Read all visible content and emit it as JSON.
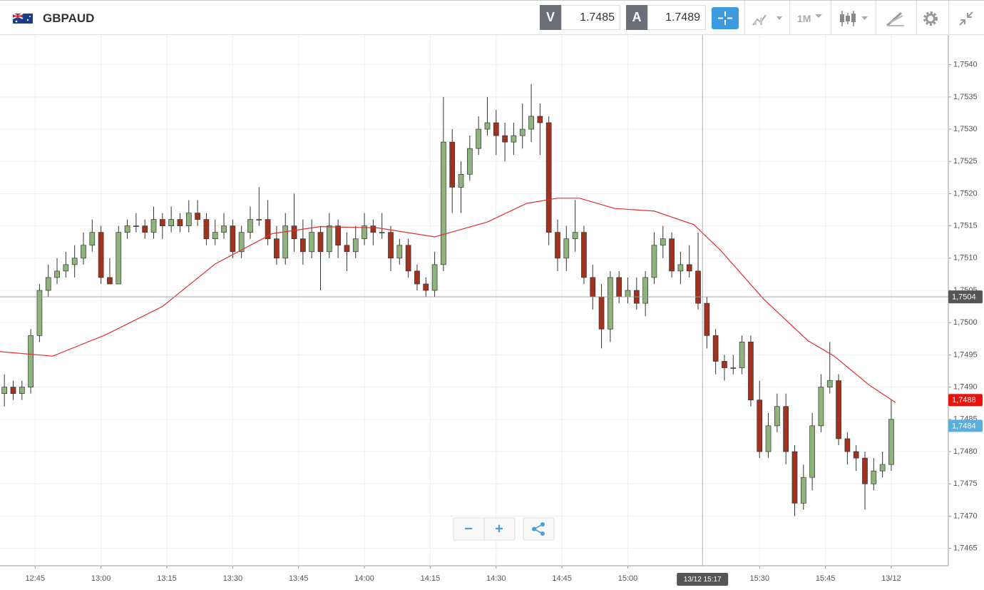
{
  "header": {
    "symbol": "GBPAUD",
    "bid_label": "V",
    "bid": 1.7485,
    "ask_label": "A",
    "ask": 1.7489,
    "timeframe": "1M"
  },
  "zoom": {
    "out": "−",
    "in": "+"
  },
  "chart_data": {
    "type": "candlestick",
    "x": [
      "12:38",
      "12:40",
      "12:42",
      "12:44",
      "12:46",
      "12:48",
      "12:50",
      "12:52",
      "12:54",
      "12:56",
      "12:58",
      "13:00",
      "13:02",
      "13:04",
      "13:06",
      "13:08",
      "13:10",
      "13:12",
      "13:14",
      "13:16",
      "13:18",
      "13:20",
      "13:22",
      "13:24",
      "13:26",
      "13:28",
      "13:30",
      "13:32",
      "13:34",
      "13:36",
      "13:38",
      "13:40",
      "13:42",
      "13:44",
      "13:46",
      "13:48",
      "13:50",
      "13:52",
      "13:54",
      "13:56",
      "13:58",
      "14:00",
      "14:02",
      "14:04",
      "14:06",
      "14:08",
      "14:10",
      "14:12",
      "14:14",
      "14:16",
      "14:18",
      "14:20",
      "14:22",
      "14:24",
      "14:26",
      "14:28",
      "14:30",
      "14:32",
      "14:34",
      "14:36",
      "14:38",
      "14:40",
      "14:42",
      "14:44",
      "14:46",
      "14:48",
      "14:50",
      "14:52",
      "14:54",
      "14:56",
      "14:58",
      "15:00",
      "15:02",
      "15:04",
      "15:06",
      "15:08",
      "15:10",
      "15:12",
      "15:14",
      "15:16",
      "15:18",
      "15:20",
      "15:22",
      "15:24",
      "15:26",
      "15:28",
      "15:30",
      "15:32",
      "15:34",
      "15:36",
      "15:38",
      "15:40",
      "15:42",
      "15:44",
      "15:46",
      "15:48",
      "15:50",
      "15:52",
      "15:54",
      "15:56",
      "15:58",
      "16:00"
    ],
    "ohlc": [
      [
        1.7489,
        1.7492,
        1.7487,
        1.749
      ],
      [
        1.749,
        1.7491,
        1.7488,
        1.7489
      ],
      [
        1.7489,
        1.7491,
        1.7488,
        1.749
      ],
      [
        1.749,
        1.7499,
        1.7489,
        1.7498
      ],
      [
        1.7498,
        1.7506,
        1.7497,
        1.7505
      ],
      [
        1.7505,
        1.7509,
        1.7504,
        1.7507
      ],
      [
        1.7507,
        1.751,
        1.7506,
        1.7508
      ],
      [
        1.7508,
        1.7511,
        1.7507,
        1.7509
      ],
      [
        1.7509,
        1.7512,
        1.7507,
        1.751
      ],
      [
        1.751,
        1.7514,
        1.7509,
        1.7512
      ],
      [
        1.7512,
        1.7516,
        1.7511,
        1.7514
      ],
      [
        1.7514,
        1.7515,
        1.7506,
        1.7507
      ],
      [
        1.7507,
        1.751,
        1.7506,
        1.7506
      ],
      [
        1.7506,
        1.7515,
        1.7506,
        1.7514
      ],
      [
        1.7514,
        1.7516,
        1.7513,
        1.7515
      ],
      [
        1.7515,
        1.7517,
        1.7514,
        1.7515
      ],
      [
        1.7515,
        1.7516,
        1.7513,
        1.7514
      ],
      [
        1.7514,
        1.7518,
        1.7513,
        1.7516
      ],
      [
        1.7516,
        1.7517,
        1.7513,
        1.7515
      ],
      [
        1.7515,
        1.7518,
        1.7514,
        1.7516
      ],
      [
        1.7516,
        1.7517,
        1.7514,
        1.7515
      ],
      [
        1.7515,
        1.7519,
        1.7514,
        1.7517
      ],
      [
        1.7517,
        1.7519,
        1.7515,
        1.7516
      ],
      [
        1.7516,
        1.7517,
        1.7512,
        1.7513
      ],
      [
        1.7513,
        1.7516,
        1.7512,
        1.7514
      ],
      [
        1.7514,
        1.7517,
        1.7513,
        1.7515
      ],
      [
        1.7515,
        1.7516,
        1.751,
        1.7511
      ],
      [
        1.7511,
        1.7515,
        1.751,
        1.7514
      ],
      [
        1.7514,
        1.7518,
        1.7513,
        1.7516
      ],
      [
        1.7516,
        1.7521,
        1.7515,
        1.7516
      ],
      [
        1.7516,
        1.7519,
        1.7512,
        1.7513
      ],
      [
        1.7513,
        1.7515,
        1.7509,
        1.751
      ],
      [
        1.751,
        1.7517,
        1.7509,
        1.7515
      ],
      [
        1.7515,
        1.752,
        1.7511,
        1.7513
      ],
      [
        1.7513,
        1.7516,
        1.7509,
        1.7511
      ],
      [
        1.7511,
        1.7516,
        1.751,
        1.7514
      ],
      [
        1.7514,
        1.7515,
        1.7505,
        1.7511
      ],
      [
        1.7511,
        1.7517,
        1.751,
        1.7515
      ],
      [
        1.7515,
        1.7516,
        1.751,
        1.7512
      ],
      [
        1.7512,
        1.7514,
        1.7508,
        1.7511
      ],
      [
        1.7511,
        1.7515,
        1.751,
        1.7513
      ],
      [
        1.7513,
        1.7517,
        1.7512,
        1.7515
      ],
      [
        1.7515,
        1.7516,
        1.7512,
        1.7514
      ],
      [
        1.7514,
        1.7517,
        1.7513,
        1.7514
      ],
      [
        1.7514,
        1.7515,
        1.7508,
        1.751
      ],
      [
        1.751,
        1.7513,
        1.7509,
        1.7512
      ],
      [
        1.7512,
        1.7513,
        1.7507,
        1.7508
      ],
      [
        1.7508,
        1.7509,
        1.7505,
        1.7506
      ],
      [
        1.7506,
        1.7507,
        1.7504,
        1.7505
      ],
      [
        1.7505,
        1.7511,
        1.7504,
        1.7509
      ],
      [
        1.7509,
        1.7535,
        1.7508,
        1.7528
      ],
      [
        1.7528,
        1.753,
        1.7517,
        1.7521
      ],
      [
        1.7521,
        1.7525,
        1.7517,
        1.7523
      ],
      [
        1.7523,
        1.7529,
        1.7522,
        1.7527
      ],
      [
        1.7527,
        1.7532,
        1.7526,
        1.753
      ],
      [
        1.753,
        1.7535,
        1.7529,
        1.7531
      ],
      [
        1.7531,
        1.7533,
        1.7526,
        1.7529
      ],
      [
        1.7529,
        1.7531,
        1.7525,
        1.7528
      ],
      [
        1.7528,
        1.7531,
        1.7526,
        1.7529
      ],
      [
        1.7529,
        1.7534,
        1.7527,
        1.753
      ],
      [
        1.753,
        1.7537,
        1.7528,
        1.7532
      ],
      [
        1.7532,
        1.7534,
        1.7526,
        1.7531
      ],
      [
        1.7531,
        1.7532,
        1.7512,
        1.7514
      ],
      [
        1.7514,
        1.7516,
        1.7508,
        1.751
      ],
      [
        1.751,
        1.7515,
        1.7508,
        1.7513
      ],
      [
        1.7513,
        1.7519,
        1.7511,
        1.7514
      ],
      [
        1.7514,
        1.7515,
        1.7506,
        1.7507
      ],
      [
        1.7507,
        1.7509,
        1.7502,
        1.7504
      ],
      [
        1.7504,
        1.7506,
        1.7496,
        1.7499
      ],
      [
        1.7499,
        1.7508,
        1.7497,
        1.7507
      ],
      [
        1.7507,
        1.7508,
        1.7503,
        1.7504
      ],
      [
        1.7504,
        1.7507,
        1.7503,
        1.7505
      ],
      [
        1.7505,
        1.7507,
        1.7502,
        1.7503
      ],
      [
        1.7503,
        1.7508,
        1.7501,
        1.7507
      ],
      [
        1.7507,
        1.7514,
        1.7506,
        1.7512
      ],
      [
        1.7512,
        1.7515,
        1.751,
        1.7513
      ],
      [
        1.7513,
        1.7514,
        1.7507,
        1.7508
      ],
      [
        1.7508,
        1.7511,
        1.7506,
        1.7509
      ],
      [
        1.7509,
        1.7512,
        1.7507,
        1.7508
      ],
      [
        1.7508,
        1.7514,
        1.7502,
        1.7503
      ],
      [
        1.7503,
        1.7504,
        1.7496,
        1.7498
      ],
      [
        1.7498,
        1.7499,
        1.7492,
        1.7494
      ],
      [
        1.7494,
        1.7495,
        1.7491,
        1.7493
      ],
      [
        1.7493,
        1.7495,
        1.7492,
        1.7493
      ],
      [
        1.7493,
        1.7498,
        1.7492,
        1.7497
      ],
      [
        1.7497,
        1.7498,
        1.7487,
        1.7488
      ],
      [
        1.7488,
        1.7491,
        1.7479,
        1.748
      ],
      [
        1.748,
        1.7486,
        1.7479,
        1.7484
      ],
      [
        1.7484,
        1.7489,
        1.7483,
        1.7487
      ],
      [
        1.7487,
        1.7489,
        1.7478,
        1.748
      ],
      [
        1.748,
        1.7481,
        1.747,
        1.7472
      ],
      [
        1.7472,
        1.7478,
        1.7471,
        1.7476
      ],
      [
        1.7476,
        1.7486,
        1.7474,
        1.7484
      ],
      [
        1.7484,
        1.7492,
        1.7483,
        1.749
      ],
      [
        1.749,
        1.7497,
        1.7489,
        1.7491
      ],
      [
        1.7491,
        1.7492,
        1.7481,
        1.7482
      ],
      [
        1.7482,
        1.7483,
        1.7478,
        1.748
      ],
      [
        1.748,
        1.7481,
        1.7477,
        1.7479
      ],
      [
        1.7479,
        1.748,
        1.7471,
        1.7475
      ],
      [
        1.7475,
        1.7479,
        1.7474,
        1.7477
      ],
      [
        1.7477,
        1.748,
        1.7476,
        1.7478
      ],
      [
        1.7478,
        1.7488,
        1.7477,
        1.7485
      ]
    ],
    "up_color": "#8fb37c",
    "down_color": "#a0321f",
    "ma": {
      "color": "#e03030",
      "x": [
        "12:37",
        "12:49",
        "13:01",
        "13:14",
        "13:26",
        "13:39",
        "13:50",
        "14:03",
        "14:16",
        "14:28",
        "14:37",
        "14:44",
        "14:49",
        "14:57",
        "15:06",
        "15:15",
        "15:21",
        "15:31",
        "15:41",
        "15:47",
        "15:55",
        "16:01"
      ],
      "values": [
        1.74955,
        1.74948,
        1.74981,
        1.75025,
        1.75091,
        1.75138,
        1.75149,
        1.75147,
        1.75133,
        1.75156,
        1.75185,
        1.75193,
        1.75193,
        1.75177,
        1.75173,
        1.75152,
        1.75113,
        1.75036,
        1.74972,
        1.74948,
        1.74903,
        1.74876
      ]
    },
    "xlim": [
      "12:37",
      "16:13"
    ],
    "xticks": [
      "12:45",
      "13:00",
      "13:15",
      "13:30",
      "13:45",
      "14:00",
      "14:15",
      "14:30",
      "14:45",
      "15:00",
      "15:30",
      "15:45",
      {
        "value": "16:00",
        "label": "13/12"
      }
    ],
    "ylim": [
      1.74623,
      1.75445
    ],
    "yticks": [
      {
        "value": 1.7465,
        "label": "1,7465"
      },
      {
        "value": 1.747,
        "label": "1,7470"
      },
      {
        "value": 1.7475,
        "label": "1,7475"
      },
      {
        "value": 1.748,
        "label": "1,7480"
      },
      {
        "value": 1.7485,
        "label": "1,7485"
      },
      {
        "value": 1.749,
        "label": "1,7490"
      },
      {
        "value": 1.7495,
        "label": "1,7495"
      },
      {
        "value": 1.75,
        "label": "1,7500"
      },
      {
        "value": 1.7505,
        "label": "1,7505"
      },
      {
        "value": 1.751,
        "label": "1,7510"
      },
      {
        "value": 1.7515,
        "label": "1,7515"
      },
      {
        "value": 1.752,
        "label": "1,7520"
      },
      {
        "value": 1.7525,
        "label": "1,7525"
      },
      {
        "value": 1.753,
        "label": "1,7530"
      },
      {
        "value": 1.7535,
        "label": "1,7535"
      },
      {
        "value": 1.754,
        "label": "1,7540"
      }
    ],
    "grid": true,
    "crosshair": {
      "x": "15:17",
      "x_label": "13/12 15:17",
      "y": {
        "value": 1.7504,
        "label": "1,7504"
      }
    },
    "price_markers": [
      {
        "value": 1.7488,
        "label": "1,7488",
        "color": "#e8120c"
      },
      {
        "value": 1.7484,
        "label": "1,7484",
        "color": "#5aaee0"
      }
    ]
  }
}
